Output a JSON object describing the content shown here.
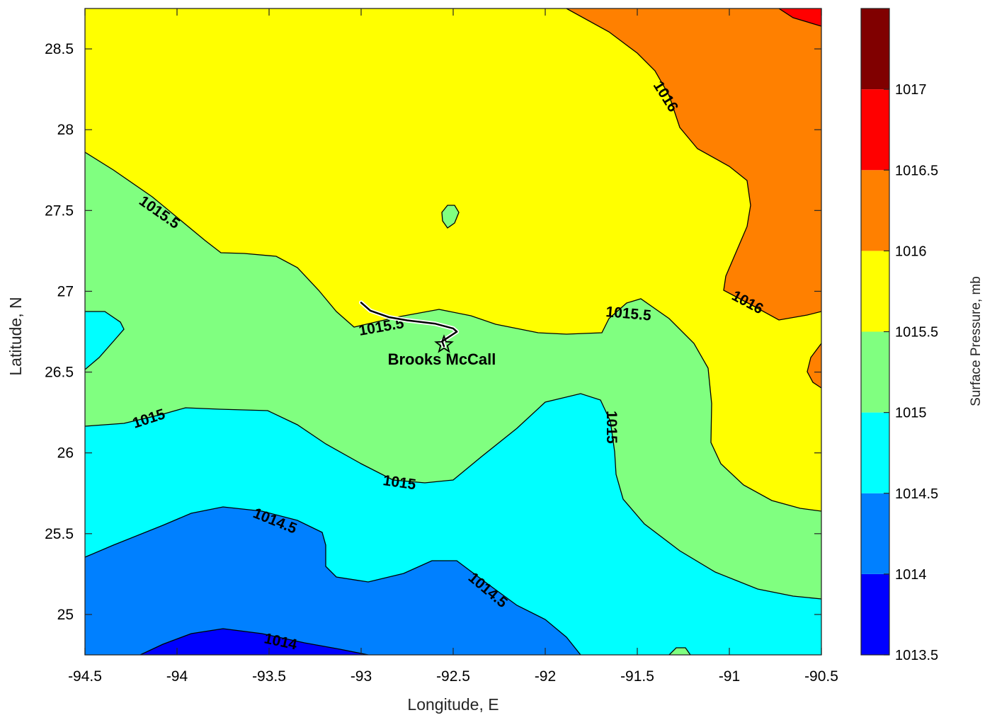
{
  "chart_data": {
    "type": "contour",
    "xlabel": "Longitude, E",
    "ylabel": "Latitude, N",
    "xlim": [
      -94.5,
      -90.5
    ],
    "ylim": [
      24.75,
      28.75
    ],
    "xticks": [
      -94.5,
      -94,
      -93.5,
      -93,
      -92.5,
      -92,
      -91.5,
      -91,
      -90.5
    ],
    "yticks": [
      25,
      25.5,
      26,
      26.5,
      27,
      27.5,
      28,
      28.5
    ],
    "grid": false,
    "colorbar": {
      "label": "Surface Pressure, mb",
      "ticks": [
        1013.5,
        1014,
        1014.5,
        1015,
        1015.5,
        1016,
        1016.5,
        1017
      ],
      "levels": [
        {
          "min": 1013.5,
          "max": 1014,
          "color": "#0000ff"
        },
        {
          "min": 1014,
          "max": 1014.5,
          "color": "#0080ff"
        },
        {
          "min": 1014.5,
          "max": 1015,
          "color": "#00ffff"
        },
        {
          "min": 1015,
          "max": 1015.5,
          "color": "#80ff80"
        },
        {
          "min": 1015.5,
          "max": 1016,
          "color": "#ffff00"
        },
        {
          "min": 1016,
          "max": 1016.5,
          "color": "#ff8000"
        },
        {
          "min": 1016.5,
          "max": 1017,
          "color": "#ff0000"
        },
        {
          "min": 1017,
          "max": 1017.5,
          "color": "#800000"
        }
      ]
    },
    "contour_labels": [
      "1014",
      "1014.5",
      "1014.5",
      "1015",
      "1015",
      "1015",
      "1015.5",
      "1015.5",
      "1015.5",
      "1016",
      "1016"
    ],
    "station": {
      "name": "Brooks McCall",
      "lon": -92.55,
      "lat": 26.67,
      "marker": "star"
    },
    "track": {
      "lon": [
        -93.0,
        -92.95,
        -92.85,
        -92.75,
        -92.6,
        -92.5,
        -92.48,
        -92.52,
        -92.56,
        -92.55
      ],
      "lat": [
        26.93,
        26.88,
        26.84,
        26.82,
        26.8,
        26.77,
        26.75,
        26.72,
        26.69,
        26.66
      ]
    }
  }
}
